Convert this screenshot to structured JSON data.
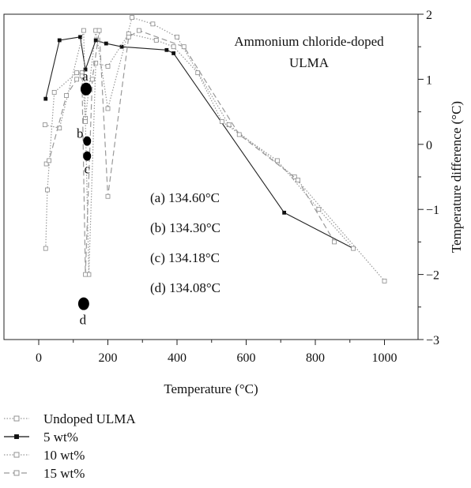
{
  "chart_data": {
    "type": "line",
    "title": "Ammonium chloride-doped ULMA",
    "xlabel": "Temperature (°C)",
    "ylabel": "Temperature difference (°C)",
    "xlim": [
      -30,
      1100
    ],
    "ylim": [
      -3,
      2
    ],
    "x_ticks": [
      0,
      200,
      400,
      600,
      800,
      1000
    ],
    "y_ticks": [
      -3,
      -2,
      -1,
      0,
      1,
      2
    ],
    "y_axis_side": "right",
    "grid": false,
    "legend_position": "bottom-left",
    "series": [
      {
        "name": "Undoped ULMA",
        "style": "dotted",
        "marker": "open-square",
        "color": "#999999",
        "points": [
          [
            20,
            -1.6
          ],
          [
            25,
            -0.7
          ],
          [
            45,
            0.8
          ],
          [
            110,
            1.1
          ],
          [
            125,
            1.1
          ],
          [
            135,
            0.4
          ],
          [
            165,
            1.75
          ],
          [
            200,
            0.55
          ],
          [
            270,
            1.95
          ],
          [
            330,
            1.85
          ],
          [
            400,
            1.65
          ],
          [
            550,
            0.3
          ],
          [
            740,
            -0.5
          ],
          [
            1000,
            -2.1
          ]
        ]
      },
      {
        "name": "5 wt%",
        "style": "solid",
        "marker": "filled-square",
        "color": "#222222",
        "points": [
          [
            20,
            0.7
          ],
          [
            60,
            1.6
          ],
          [
            120,
            1.65
          ],
          [
            135,
            1.15
          ],
          [
            165,
            1.6
          ],
          [
            195,
            1.55
          ],
          [
            240,
            1.5
          ],
          [
            370,
            1.45
          ],
          [
            390,
            1.4
          ],
          [
            710,
            -1.05
          ],
          [
            910,
            -1.6
          ]
        ]
      },
      {
        "name": "10 wt%",
        "style": "dotted",
        "marker": "open-square",
        "color": "#999999",
        "points": [
          [
            18,
            0.3
          ],
          [
            60,
            0.25
          ],
          [
            130,
            1.75
          ],
          [
            135,
            0.35
          ],
          [
            145,
            -2.0
          ],
          [
            165,
            1.25
          ],
          [
            200,
            1.2
          ],
          [
            260,
            1.7
          ],
          [
            340,
            1.6
          ],
          [
            390,
            1.5
          ],
          [
            460,
            1.1
          ],
          [
            530,
            0.35
          ],
          [
            690,
            -0.25
          ],
          [
            810,
            -1.0
          ],
          [
            910,
            -1.6
          ]
        ]
      },
      {
        "name": "15 wt%",
        "style": "dashed",
        "marker": "open-square",
        "color": "#999999",
        "points": [
          [
            22,
            -0.3
          ],
          [
            30,
            -0.25
          ],
          [
            80,
            0.75
          ],
          [
            110,
            1.0
          ],
          [
            125,
            1.05
          ],
          [
            135,
            -2.0
          ],
          [
            155,
            1.0
          ],
          [
            175,
            1.75
          ],
          [
            200,
            -0.8
          ],
          [
            260,
            1.65
          ],
          [
            290,
            1.75
          ],
          [
            420,
            1.5
          ],
          [
            580,
            0.15
          ],
          [
            750,
            -0.55
          ],
          [
            855,
            -1.5
          ]
        ]
      }
    ],
    "peaks": [
      {
        "label": "a",
        "x": 137,
        "y": 0.85,
        "size": "large",
        "value_text": "(a) 134.60°C"
      },
      {
        "label": "b",
        "x": 140,
        "y": 0.05,
        "size": "medium",
        "value_text": "(b) 134.30°C"
      },
      {
        "label": "c",
        "x": 140,
        "y": -0.18,
        "size": "medium",
        "value_text": "(c) 134.18°C"
      },
      {
        "label": "d",
        "x": 130,
        "y": -2.45,
        "size": "large",
        "value_text": "(d) 134.08°C"
      }
    ]
  }
}
